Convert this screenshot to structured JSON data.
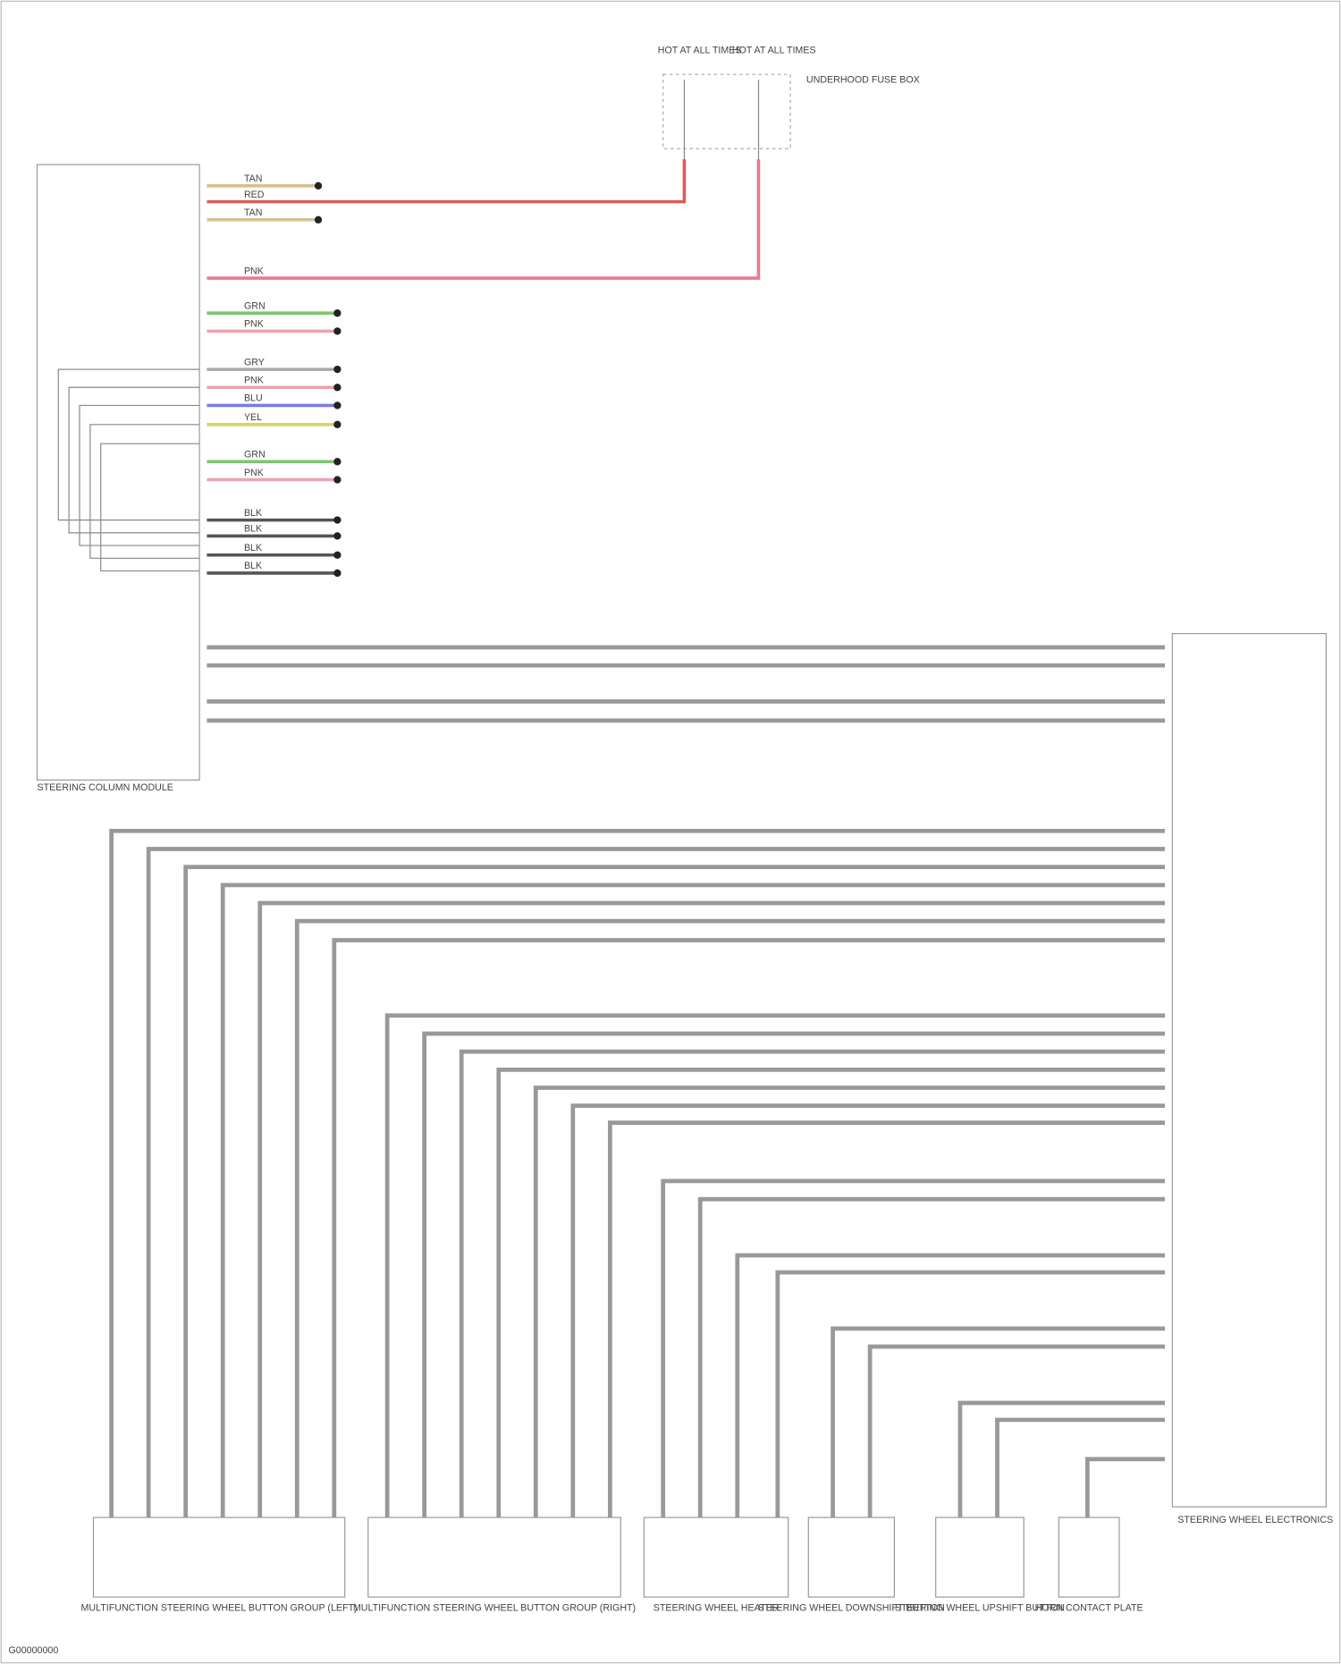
{
  "header": {
    "fuses": [
      {
        "label": "HOT AT ALL TIMES"
      },
      {
        "label": "HOT AT ALL TIMES"
      }
    ],
    "fuse_box": "UNDERHOOD FUSE BOX"
  },
  "left_module": {
    "label": "STEERING COLUMN MODULE"
  },
  "right_module": {
    "label": "STEERING WHEEL ELECTRONICS"
  },
  "left_wires": [
    {
      "label": "TAN"
    },
    {
      "label": "RED"
    },
    {
      "label": "TAN"
    },
    {
      "label": "PNK"
    },
    {
      "label": "GRN"
    },
    {
      "label": "PNK"
    },
    {
      "label": "GRY"
    },
    {
      "label": "PNK"
    },
    {
      "label": "BLU"
    },
    {
      "label": "YEL"
    },
    {
      "label": "GRN"
    },
    {
      "label": "PNK"
    },
    {
      "label": "BLK"
    },
    {
      "label": "BLK"
    },
    {
      "label": "BLK"
    },
    {
      "label": "BLK"
    }
  ],
  "components": [
    {
      "label": "MULTIFUNCTION STEERING WHEEL BUTTON GROUP (LEFT)"
    },
    {
      "label": "MULTIFUNCTION STEERING WHEEL BUTTON GROUP (RIGHT)"
    },
    {
      "label": "STEERING WHEEL HEATER"
    },
    {
      "label": "STEERING WHEEL DOWNSHIFT BUTTON"
    },
    {
      "label": "STEERING WHEEL UPSHIFT BUTTON"
    },
    {
      "label": "HORN CONTACT PLATE"
    }
  ],
  "footer": "G00000000"
}
